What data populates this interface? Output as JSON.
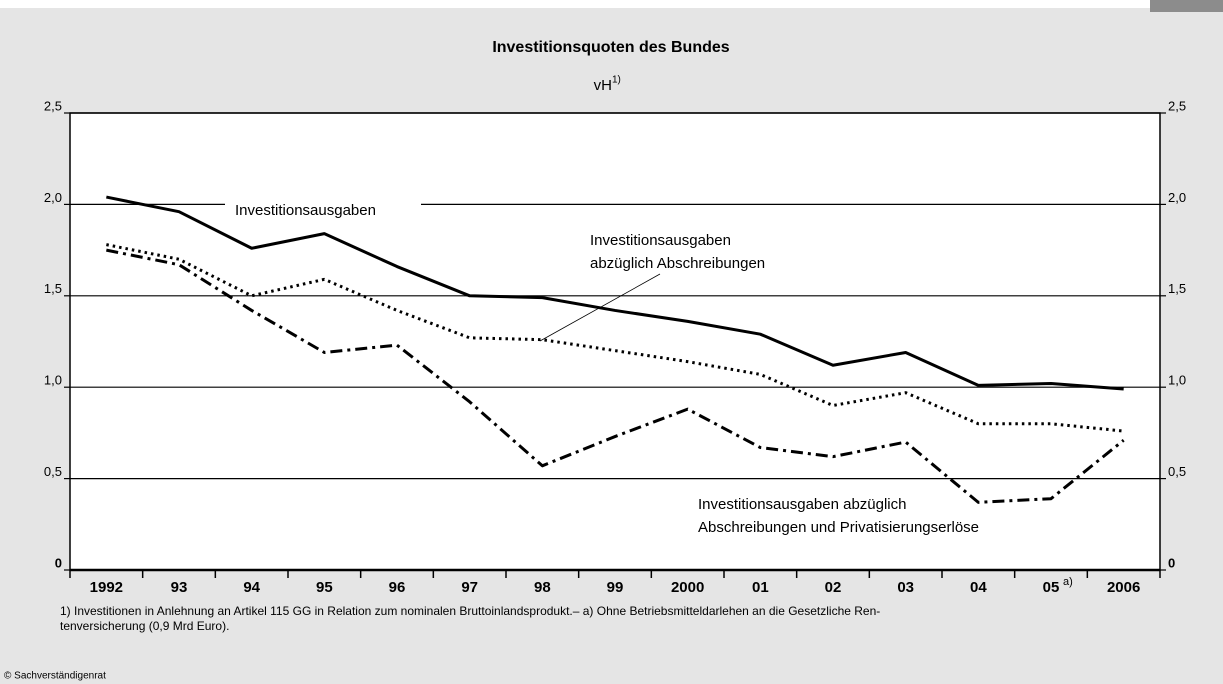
{
  "chart_data": {
    "type": "line",
    "title": "Investitionsquoten des Bundes",
    "subtitle": "vH",
    "subtitle_note": "1)",
    "categories": [
      "1992",
      "93",
      "94",
      "95",
      "96",
      "97",
      "98",
      "99",
      "2000",
      "01",
      "02",
      "03",
      "04",
      "05",
      "2006"
    ],
    "category_note": {
      "category": "05",
      "text": "a)"
    },
    "ylim": [
      0,
      2.5
    ],
    "yticks": [
      0,
      {
        "value": 0.5,
        "label": "0,5"
      },
      {
        "value": 1.0,
        "label": "1,0"
      },
      {
        "value": 1.5,
        "label": "1,5"
      },
      {
        "value": 2.0,
        "label": "2,0"
      },
      {
        "value": 2.5,
        "label": "2,5"
      }
    ],
    "grid": true,
    "series": [
      {
        "name_lines": [
          "Investitionsausgaben"
        ],
        "style": "solid",
        "color": "#000000",
        "values": [
          2.04,
          1.96,
          1.76,
          1.84,
          1.66,
          1.5,
          1.49,
          1.42,
          1.36,
          1.29,
          1.12,
          1.19,
          1.01,
          1.02,
          0.99
        ]
      },
      {
        "name_lines": [
          "Investitionsausgaben",
          "abzüglich Abschreibungen"
        ],
        "style": "dotted",
        "color": "#000000",
        "values": [
          1.78,
          1.7,
          1.5,
          1.59,
          1.42,
          1.27,
          1.26,
          1.2,
          1.14,
          1.07,
          0.9,
          0.97,
          0.8,
          0.8,
          0.76
        ]
      },
      {
        "name_lines": [
          "Investitionsausgaben abzüglich",
          "Abschreibungen und Privatisierungserlöse"
        ],
        "style": "dashdot",
        "color": "#000000",
        "values": [
          1.75,
          1.67,
          1.42,
          1.19,
          1.23,
          0.92,
          0.57,
          0.73,
          0.88,
          0.67,
          0.62,
          0.7,
          0.37,
          0.39,
          0.71
        ]
      }
    ],
    "footnote": [
      "1) Investitionen in Anlehnung an Artikel 115 GG in Relation zum nominalen Bruttoinlandsprodukt.– a) Ohne Betriebsmitteldarlehen an die Gesetzliche Ren-",
      "tenversicherung (0,9 Mrd Euro)."
    ],
    "source": "© Sachverständigenrat"
  }
}
